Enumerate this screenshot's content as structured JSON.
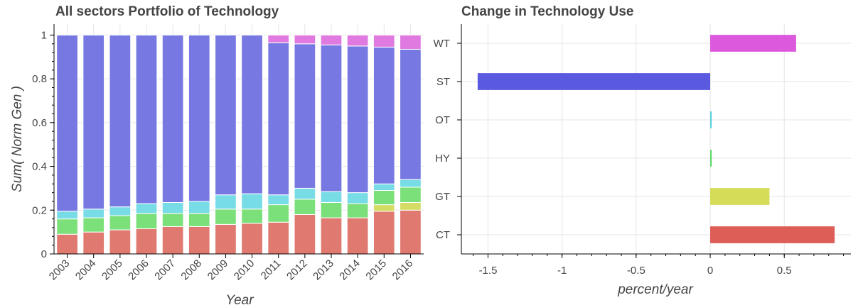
{
  "chart_data": [
    {
      "type": "bar",
      "stacked": true,
      "title": "All sectors Portfolio of Technology",
      "xlabel": "Year",
      "ylabel": "Sum( Norm Gen )",
      "ylim": [
        0,
        1.05
      ],
      "yticks": [
        0,
        0.2,
        0.4,
        0.6,
        0.8,
        1
      ],
      "ytick_labels": [
        "0",
        "0.2",
        "0.4",
        "0.6",
        "0.8",
        "1"
      ],
      "categories": [
        "2003",
        "2004",
        "2005",
        "2006",
        "2007",
        "2008",
        "2009",
        "2010",
        "2011",
        "2012",
        "2013",
        "2014",
        "2015",
        "2016"
      ],
      "series": [
        {
          "key": "CT",
          "color": "#e07a70",
          "values": [
            0.09,
            0.1,
            0.11,
            0.115,
            0.125,
            0.125,
            0.135,
            0.14,
            0.145,
            0.18,
            0.165,
            0.165,
            0.195,
            0.2
          ]
        },
        {
          "key": "GT",
          "color": "#d4dc64",
          "values": [
            0,
            0,
            0,
            0,
            0,
            0,
            0,
            0,
            0,
            0,
            0,
            0,
            0.03,
            0.035
          ]
        },
        {
          "key": "HY",
          "color": "#7ce07a",
          "values": [
            0.07,
            0.065,
            0.065,
            0.07,
            0.06,
            0.06,
            0.07,
            0.065,
            0.08,
            0.07,
            0.07,
            0.065,
            0.065,
            0.07
          ]
        },
        {
          "key": "OT",
          "color": "#78dce6",
          "values": [
            0.035,
            0.04,
            0.04,
            0.045,
            0.05,
            0.055,
            0.065,
            0.07,
            0.045,
            0.05,
            0.05,
            0.05,
            0.03,
            0.035
          ]
        },
        {
          "key": "ST",
          "color": "#7878e2",
          "values": [
            0.805,
            0.795,
            0.785,
            0.77,
            0.765,
            0.76,
            0.73,
            0.725,
            0.695,
            0.66,
            0.67,
            0.67,
            0.625,
            0.595
          ]
        },
        {
          "key": "WT",
          "color": "#e07ae0",
          "values": [
            0,
            0,
            0,
            0,
            0,
            0,
            0,
            0,
            0.035,
            0.04,
            0.045,
            0.05,
            0.055,
            0.065
          ]
        }
      ]
    },
    {
      "type": "bar",
      "orientation": "horizontal",
      "title": "Change in Technology Use",
      "xlabel": "percent/year",
      "xlim": [
        -1.68,
        0.95
      ],
      "xticks": [
        -1.5,
        -1,
        -0.5,
        0,
        0.5
      ],
      "xtick_labels": [
        "-1.5",
        "-1",
        "-0.5",
        "0",
        "0.5"
      ],
      "categories": [
        "WT",
        "ST",
        "OT",
        "HY",
        "GT",
        "CT"
      ],
      "values": [
        0.58,
        -1.57,
        0.01,
        0.01,
        0.4,
        0.84
      ],
      "colors": [
        "#dc58dc",
        "#5a5ae0",
        "#56d0e0",
        "#58d868",
        "#d4dc58",
        "#dc5e56"
      ]
    }
  ]
}
